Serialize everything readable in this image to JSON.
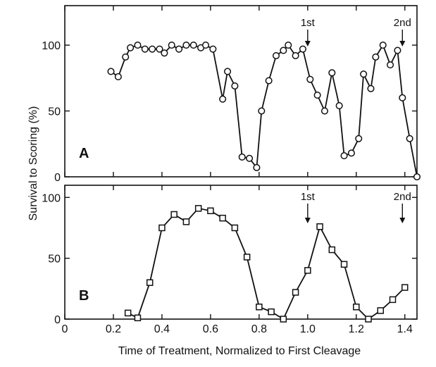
{
  "chart_data": [
    {
      "type": "line",
      "panel_label": "A",
      "marker": "circle",
      "xlim": [
        0,
        1.45
      ],
      "ylim": [
        0,
        130
      ],
      "yticks": [
        0,
        50,
        100
      ],
      "ytick_labels": [
        "0",
        "50",
        "100"
      ],
      "xticks": [
        0,
        0.2,
        0.4,
        0.6,
        0.8,
        1.0,
        1.2,
        1.4
      ],
      "annotations": [
        {
          "text": "1st",
          "x": 1.0
        },
        {
          "text": "2nd",
          "x": 1.39
        }
      ],
      "x": [
        0.19,
        0.22,
        0.25,
        0.27,
        0.3,
        0.33,
        0.36,
        0.39,
        0.41,
        0.44,
        0.47,
        0.5,
        0.53,
        0.56,
        0.58,
        0.61,
        0.65,
        0.67,
        0.7,
        0.73,
        0.76,
        0.79,
        0.81,
        0.84,
        0.87,
        0.9,
        0.92,
        0.95,
        0.98,
        1.01,
        1.04,
        1.07,
        1.1,
        1.13,
        1.15,
        1.18,
        1.21,
        1.23,
        1.26,
        1.28,
        1.31,
        1.34,
        1.37,
        1.39,
        1.42,
        1.45
      ],
      "y": [
        80,
        76,
        91,
        98,
        100,
        97,
        97,
        97,
        94,
        100,
        97,
        100,
        100,
        98,
        100,
        97,
        59,
        80,
        69,
        15,
        14,
        7,
        50,
        73,
        92,
        96,
        100,
        92,
        97,
        74,
        62,
        50,
        79,
        54,
        16,
        18,
        29,
        78,
        67,
        91,
        100,
        85,
        96,
        60,
        29,
        0
      ]
    },
    {
      "type": "line",
      "panel_label": "B",
      "marker": "square",
      "xlim": [
        0,
        1.45
      ],
      "ylim": [
        0,
        110
      ],
      "yticks": [
        0,
        50,
        100
      ],
      "ytick_labels": [
        "0",
        "50",
        "100"
      ],
      "xticks": [
        0,
        0.2,
        0.4,
        0.6,
        0.8,
        1.0,
        1.2,
        1.4
      ],
      "xtick_labels": [
        "0",
        "0.2",
        "0.4",
        "0.6",
        "0.8",
        "1.0",
        "1.2",
        "1.4"
      ],
      "xlabel": "Time of Treatment, Normalized to First Cleavage",
      "annotations": [
        {
          "text": "1st",
          "x": 1.0
        },
        {
          "text": "2nd",
          "x": 1.39
        }
      ],
      "x": [
        0.26,
        0.3,
        0.35,
        0.4,
        0.45,
        0.5,
        0.55,
        0.6,
        0.65,
        0.7,
        0.75,
        0.8,
        0.85,
        0.9,
        0.95,
        1.0,
        1.05,
        1.1,
        1.15,
        1.2,
        1.25,
        1.3,
        1.35,
        1.4
      ],
      "y": [
        5,
        1,
        30,
        75,
        86,
        80,
        91,
        89,
        83,
        75,
        51,
        10,
        6,
        0,
        22,
        40,
        76,
        57,
        45,
        10,
        0,
        7,
        16,
        26
      ]
    }
  ],
  "ylabel": "Survival to Scoring (%)"
}
